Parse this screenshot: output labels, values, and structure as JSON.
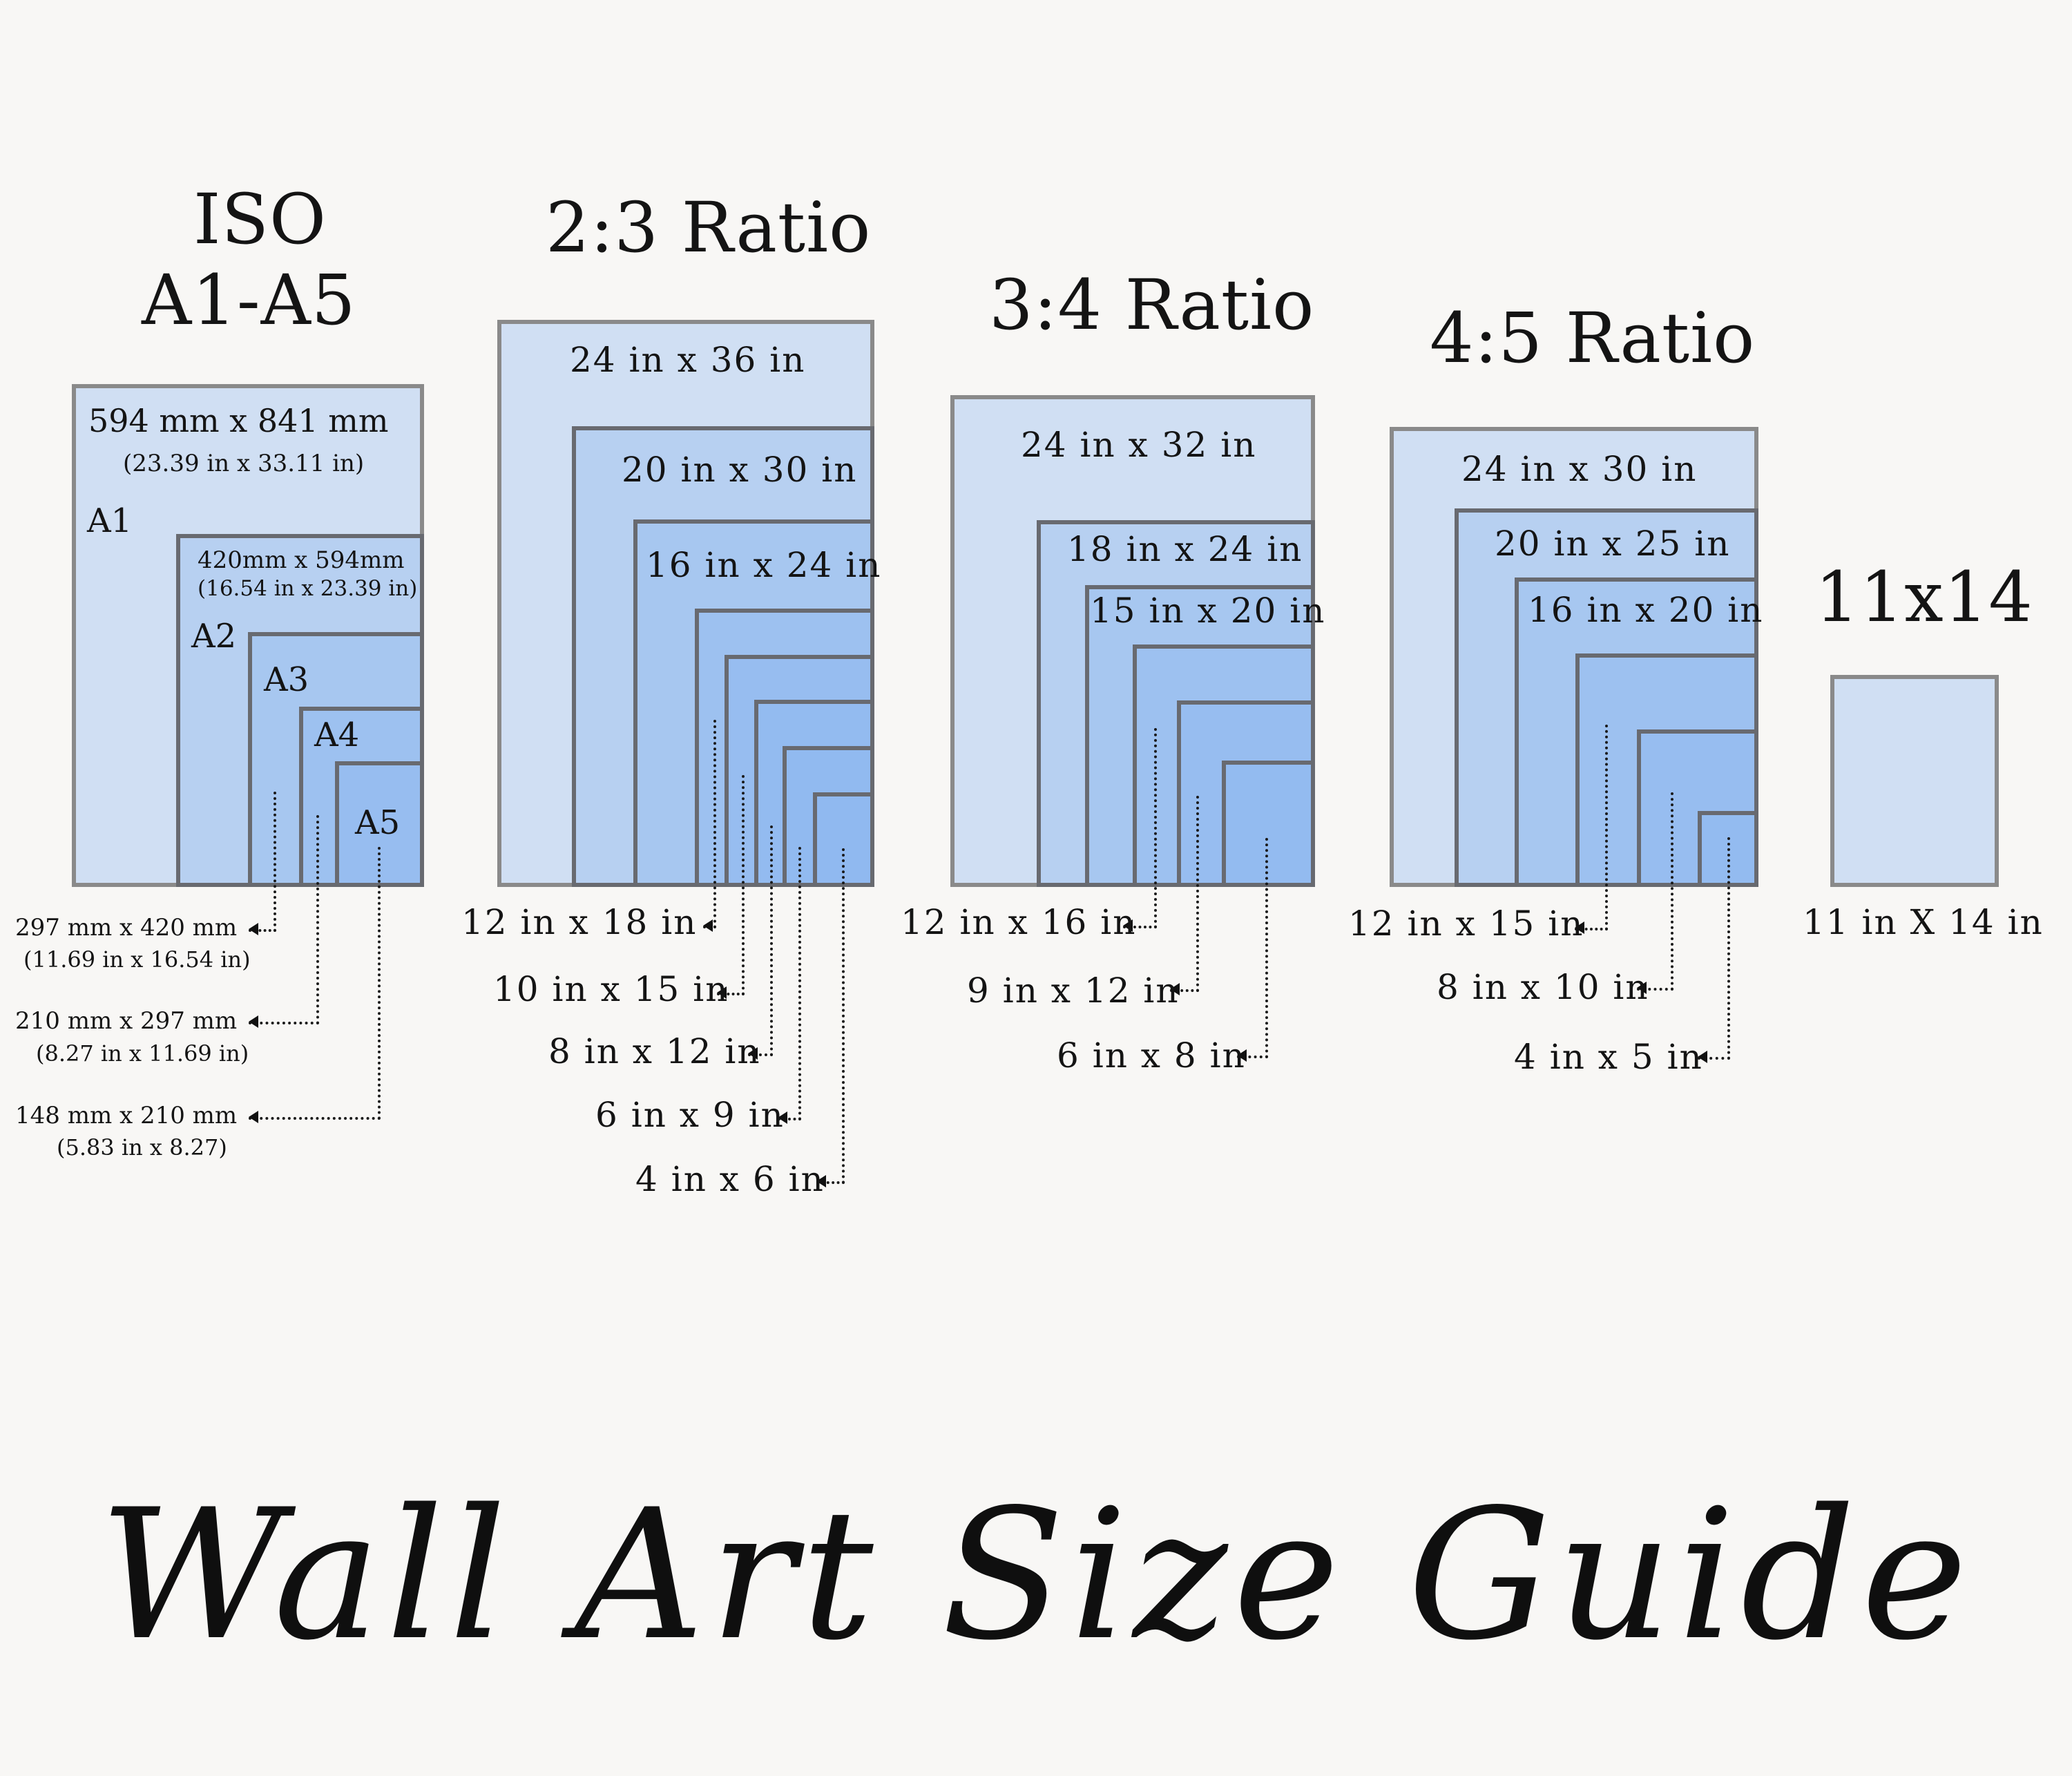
{
  "title": "Wall Art Size Guide",
  "colors": {
    "background": "#f8f7f5",
    "frame_fill": "#8fb7ef",
    "frame_border": "#686a70",
    "text": "#141414"
  },
  "groups": [
    {
      "heading": [
        "ISO",
        "A1-A5"
      ],
      "sizes": [
        {
          "label": "594 mm x 841 mm",
          "sub": "(23.39 in x 33.11 in)",
          "tag": "A1"
        },
        {
          "label": "420mm x 594mm",
          "sub": "(16.54 in x 23.39 in)",
          "tag": "A2"
        },
        {
          "label": "297 mm x 420 mm",
          "sub": "(11.69 in x 16.54 in)",
          "tag": "A3"
        },
        {
          "label": "210 mm x 297 mm",
          "sub": "(8.27 in x 11.69 in)",
          "tag": "A4"
        },
        {
          "label": "148 mm x 210 mm",
          "sub": "(5.83 in x 8.27)",
          "tag": "A5"
        }
      ]
    },
    {
      "heading": [
        "2:3 Ratio"
      ],
      "sizes": [
        "24 in x 36 in",
        "20 in x 30 in",
        "16 in x 24 in",
        "12 in x 18 in",
        "10 in x 15 in",
        "8 in x 12 in",
        "6 in x 9 in",
        "4 in x 6 in"
      ]
    },
    {
      "heading": [
        "3:4 Ratio"
      ],
      "sizes": [
        "24 in x 32 in",
        "18 in x 24 in",
        "15 in x 20 in",
        "12 in x 16 in",
        "9 in x 12 in",
        "6 in x 8 in"
      ]
    },
    {
      "heading": [
        "4:5 Ratio"
      ],
      "sizes": [
        "24 in x 30 in",
        "20 in x 25 in",
        "16 in x 20 in",
        "12 in x 15 in",
        "8 in x 10 in",
        "4 in x 5 in"
      ]
    },
    {
      "heading": [
        "11x14"
      ],
      "sizes": [
        "11 in X 14 in"
      ]
    }
  ]
}
